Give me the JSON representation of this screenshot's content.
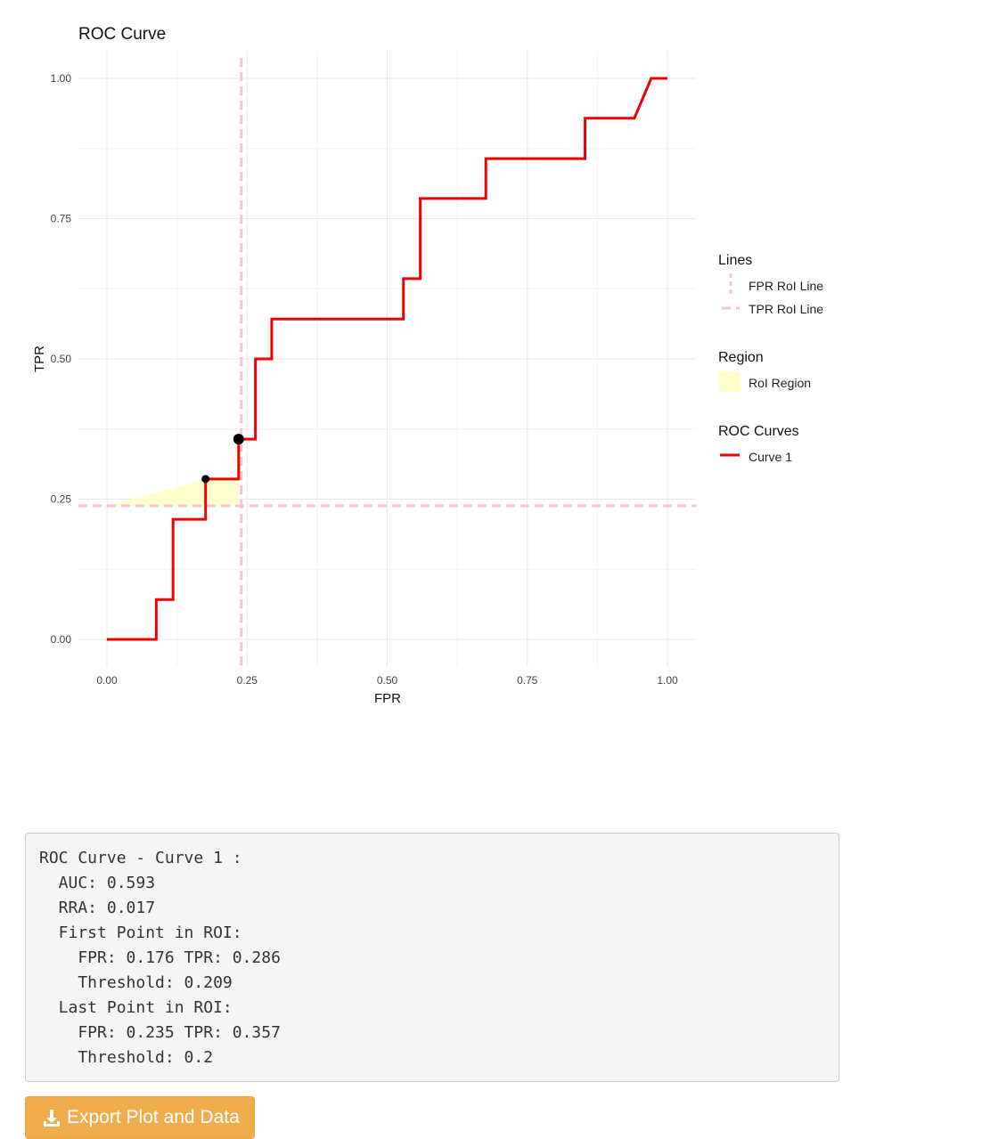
{
  "chart_data": {
    "type": "line",
    "title": "ROC Curve",
    "xlabel": "FPR",
    "ylabel": "TPR",
    "xlim": [
      0,
      1
    ],
    "ylim": [
      0,
      1
    ],
    "x_ticks": [
      "0.00",
      "0.25",
      "0.50",
      "0.75",
      "1.00"
    ],
    "y_ticks": [
      "0.00",
      "0.25",
      "0.50",
      "0.75",
      "1.00"
    ],
    "grid": true,
    "legend_position": "right",
    "series": [
      {
        "name": "Curve 1",
        "color": "#ee0000",
        "step": true,
        "points": [
          [
            0.0,
            0.0
          ],
          [
            0.088,
            0.0
          ],
          [
            0.088,
            0.071
          ],
          [
            0.118,
            0.071
          ],
          [
            0.118,
            0.214
          ],
          [
            0.176,
            0.214
          ],
          [
            0.176,
            0.286
          ],
          [
            0.235,
            0.286
          ],
          [
            0.235,
            0.357
          ],
          [
            0.265,
            0.357
          ],
          [
            0.265,
            0.5
          ],
          [
            0.294,
            0.5
          ],
          [
            0.294,
            0.571
          ],
          [
            0.529,
            0.571
          ],
          [
            0.529,
            0.643
          ],
          [
            0.559,
            0.643
          ],
          [
            0.559,
            0.786
          ],
          [
            0.676,
            0.786
          ],
          [
            0.676,
            0.857
          ],
          [
            0.853,
            0.857
          ],
          [
            0.853,
            0.929
          ],
          [
            0.941,
            0.929
          ],
          [
            0.971,
            1.0
          ],
          [
            1.0,
            1.0
          ]
        ]
      }
    ],
    "roi": {
      "fpr_line": 0.235,
      "tpr_line": 0.238,
      "region_color": "#ffffc8",
      "region_polygon": [
        [
          0.0,
          0.238
        ],
        [
          0.176,
          0.286
        ],
        [
          0.235,
          0.286
        ],
        [
          0.235,
          0.357
        ],
        [
          0.235,
          0.238
        ]
      ],
      "first_point": [
        0.176,
        0.286
      ],
      "last_point": [
        0.235,
        0.357
      ]
    },
    "legend": {
      "lines_title": "Lines",
      "lines_items": [
        "FPR RoI Line",
        "TPR RoI Line"
      ],
      "line_color": "#f7c4cc",
      "region_title": "Region",
      "region_items": [
        "RoI Region"
      ],
      "curves_title": "ROC Curves",
      "curves_items": [
        "Curve 1"
      ]
    }
  },
  "output": {
    "lines": [
      "ROC Curve - Curve 1 :",
      "  AUC: 0.593",
      "  RRA: 0.017",
      "  First Point in ROI:",
      "    FPR: 0.176 TPR: 0.286",
      "    Threshold: 0.209",
      "  Last Point in ROI:",
      "    FPR: 0.235 TPR: 0.357",
      "    Threshold: 0.2"
    ]
  },
  "export_button": {
    "label": "Export Plot and Data",
    "icon": "download-icon",
    "color": "#f0ad4e"
  }
}
